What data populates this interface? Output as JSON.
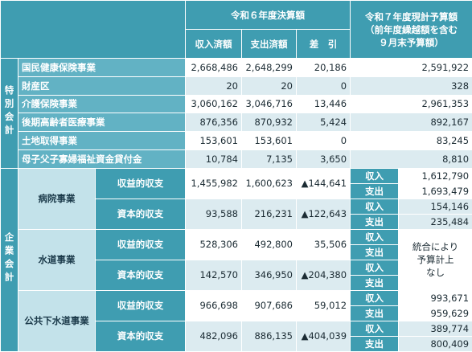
{
  "header": {
    "fy6": "令和６年度決算額",
    "fy6_columns": [
      "収入済額",
      "支出済額",
      "差　引"
    ],
    "fy7": [
      "令和７年度現計予算額",
      "（前年度繰越額を含む",
      "９月末予算額）"
    ]
  },
  "special": {
    "label": "特別会計",
    "rows": [
      {
        "name": "国民健康保険事業",
        "values": [
          "2,668,486",
          "2,648,299",
          "20,186"
        ],
        "budget": "2,591,922"
      },
      {
        "name": "財産区",
        "values": [
          "20",
          "20",
          "0"
        ],
        "budget": "328"
      },
      {
        "name": "介護保険事業",
        "values": [
          "3,060,162",
          "3,046,716",
          "13,446"
        ],
        "budget": "2,961,353"
      },
      {
        "name": "後期高齢者医療事業",
        "values": [
          "876,356",
          "870,932",
          "5,424"
        ],
        "budget": "892,167"
      },
      {
        "name": "土地取得事業",
        "values": [
          "153,601",
          "153,601",
          "0"
        ],
        "budget": "83,245"
      },
      {
        "name": "母子父子寡婦福祉資金貸付金",
        "values": [
          "10,784",
          "7,135",
          "3,650"
        ],
        "budget": "8,810"
      }
    ]
  },
  "enterprise": {
    "label": "企業会計",
    "businesses": [
      {
        "name": "病院事業",
        "rows": [
          {
            "name": "収益的収支",
            "values": [
              "1,455,982",
              "1,600,623",
              "▲144,641"
            ],
            "budget_labels": [
              "収入",
              "支出"
            ],
            "budget_values": [
              "1,612,790",
              "1,693,479"
            ]
          },
          {
            "name": "資本的収支",
            "values": [
              "93,588",
              "216,231",
              "▲122,643"
            ],
            "budget_labels": [
              "収入",
              "支出"
            ],
            "budget_values": [
              "154,146",
              "235,484"
            ]
          }
        ]
      },
      {
        "name": "水道事業",
        "budget_note": [
          "統合により",
          "予算計上",
          "なし"
        ],
        "rows": [
          {
            "name": "収益的収支",
            "values": [
              "528,306",
              "492,800",
              "35,506"
            ],
            "budget_labels": [
              "収入",
              "支出"
            ]
          },
          {
            "name": "資本的収支",
            "values": [
              "142,570",
              "346,950",
              "▲204,380"
            ],
            "budget_labels": [
              "収入",
              "支出"
            ]
          }
        ]
      },
      {
        "name": "公共下水道事業",
        "rows": [
          {
            "name": "収益的収支",
            "values": [
              "966,698",
              "907,686",
              "59,012"
            ],
            "budget_labels": [
              "収入",
              "支出"
            ],
            "budget_values": [
              "993,671",
              "959,629"
            ]
          },
          {
            "name": "資本的収支",
            "values": [
              "482,096",
              "886,135",
              "▲404,039"
            ],
            "budget_labels": [
              "収入",
              "支出"
            ],
            "budget_values": [
              "389,774",
              "800,409"
            ]
          }
        ]
      }
    ]
  }
}
